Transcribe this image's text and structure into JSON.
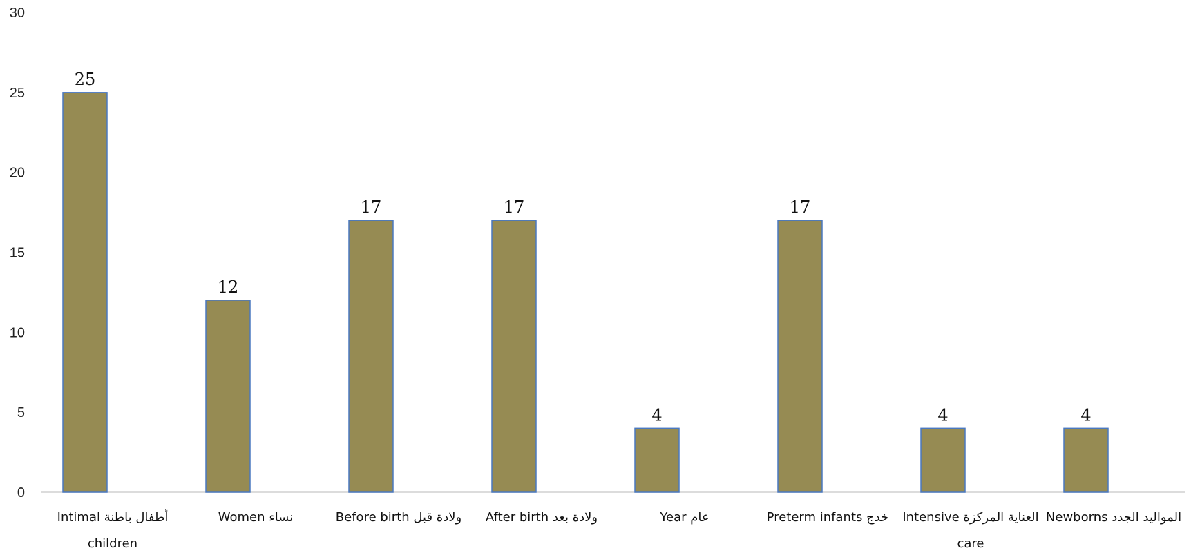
{
  "chart_data": {
    "type": "bar",
    "title": "",
    "xlabel": "",
    "ylabel": "",
    "ylim": [
      0,
      30
    ],
    "yticks": [
      0,
      5,
      10,
      15,
      20,
      25,
      30
    ],
    "grid": false,
    "legend": "none",
    "categories": [
      [
        "Intimal أطفال باطنة",
        "children"
      ],
      [
        "Women نساء"
      ],
      [
        "Before birth ولادة قبل"
      ],
      [
        "After birth ولادة بعد"
      ],
      [
        "Year عام"
      ],
      [
        "Preterm infants خدج"
      ],
      [
        "Intensive العناية المركزة",
        "care"
      ],
      [
        "Newborns المواليد الجدد"
      ]
    ],
    "values": [
      25,
      12,
      17,
      17,
      4,
      17,
      4,
      4
    ],
    "colors": {
      "bar_fill": "#968b53",
      "bar_stroke": "#4a78c0",
      "axis": "#d0d0d0"
    }
  }
}
